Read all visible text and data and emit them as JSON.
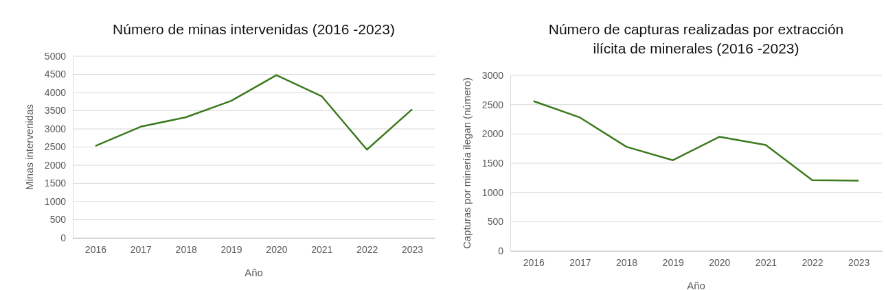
{
  "chart_data": [
    {
      "type": "line",
      "title": "Número de minas intervenidas (2016 -2023)",
      "xlabel": "Año",
      "ylabel": "Minas intervenidas",
      "categories": [
        "2016",
        "2017",
        "2018",
        "2019",
        "2020",
        "2021",
        "2022",
        "2023"
      ],
      "series": [
        {
          "color": "#3b7a1e",
          "values": [
            2530,
            3060,
            3320,
            3770,
            4480,
            3900,
            2430,
            3540
          ]
        }
      ],
      "ylim": [
        0,
        5000
      ],
      "yticks": [
        0,
        500,
        1000,
        1500,
        2000,
        2500,
        3000,
        3500,
        4000,
        4500,
        5000
      ],
      "grid": "y"
    },
    {
      "type": "line",
      "title": "Número de capturas realizadas por extracción ilícita de minerales (2016 -2023)",
      "xlabel": "Año",
      "ylabel": "Capturas por minería ilegan (número)",
      "categories": [
        "2016",
        "2017",
        "2018",
        "2019",
        "2020",
        "2021",
        "2022",
        "2023"
      ],
      "series": [
        {
          "color": "#3b7a1e",
          "values": [
            2560,
            2280,
            1780,
            1550,
            1950,
            1810,
            1210,
            1200
          ]
        }
      ],
      "ylim": [
        0,
        3000
      ],
      "yticks": [
        0,
        500,
        1000,
        1500,
        2000,
        2500,
        3000
      ],
      "grid": "y"
    }
  ]
}
